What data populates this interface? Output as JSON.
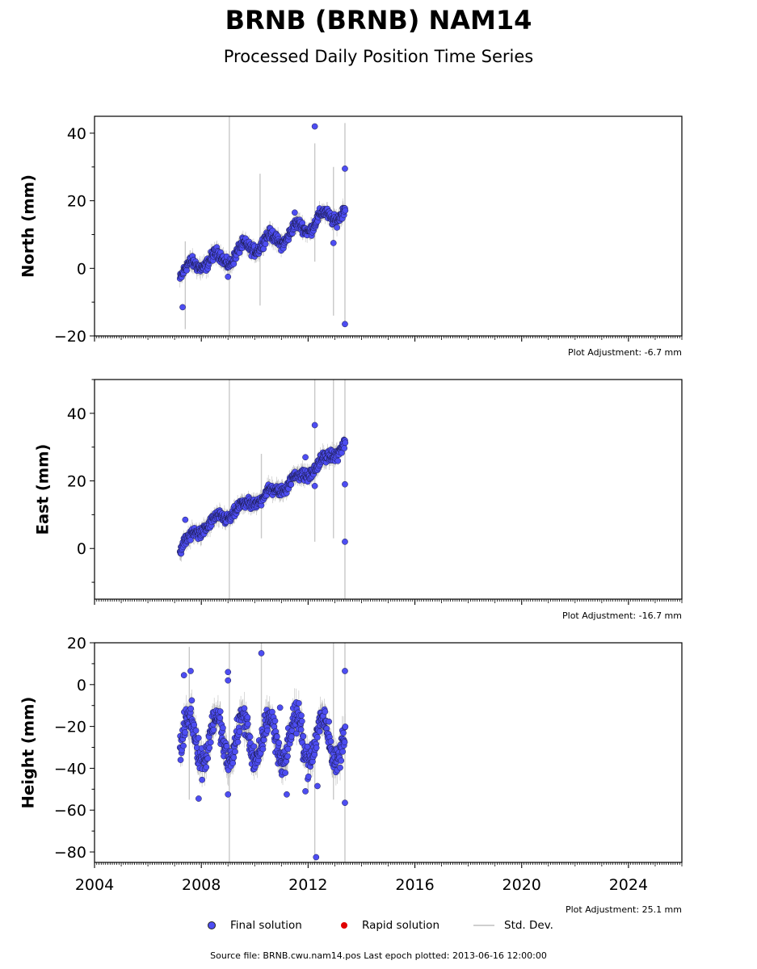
{
  "title": "BRNB (BRNB) NAM14",
  "subtitle": "Processed Daily Position Time Series",
  "legend": {
    "final_label": "Final solution",
    "rapid_label": "Rapid solution",
    "std_label": "Std. Dev."
  },
  "source_text": "Source file: BRNB.cwu.nam14.pos  Last epoch plotted: 2013-06-16 12:00:00",
  "colors": {
    "final": "#4d4df2",
    "rapid": "#e00000",
    "std": "#c8c8c8"
  },
  "chart_data": [
    {
      "type": "scatter",
      "ylabel": "North (mm)",
      "adjustment": "Plot Adjustment: -6.7 mm",
      "xlim": [
        2004,
        2026
      ],
      "ylim": [
        -20,
        45
      ],
      "yticks": [
        -20,
        0,
        20,
        40
      ],
      "xticks": [
        2004,
        2008,
        2012,
        2016,
        2020,
        2024
      ],
      "show_xtick_labels": false,
      "trend": {
        "x": [
          2007.2,
          2008.0,
          2009.0,
          2010.0,
          2011.0,
          2012.3,
          2013.4
        ],
        "y": [
          -2,
          2,
          3,
          7,
          9,
          14,
          17
        ]
      },
      "seasonal_amp": 2,
      "outliers": [
        {
          "x": 2012.25,
          "y": 42
        },
        {
          "x": 2013.38,
          "y": 29.5
        },
        {
          "x": 2013.38,
          "y": -16.5
        },
        {
          "x": 2007.3,
          "y": -11.5
        },
        {
          "x": 2009.0,
          "y": -2.5
        },
        {
          "x": 2012.95,
          "y": 7.5
        },
        {
          "x": 2011.5,
          "y": 16.5
        }
      ],
      "error_spikes": [
        {
          "x": 2009.05,
          "y1": -20,
          "y2": 45
        },
        {
          "x": 2012.25,
          "y1": 2,
          "y2": 37
        },
        {
          "x": 2013.38,
          "y1": -17,
          "y2": 43
        },
        {
          "x": 2012.95,
          "y1": -14,
          "y2": 30
        },
        {
          "x": 2010.2,
          "y1": -11,
          "y2": 28
        },
        {
          "x": 2007.4,
          "y1": -18,
          "y2": 8
        }
      ]
    },
    {
      "type": "scatter",
      "ylabel": "East (mm)",
      "adjustment": "Plot Adjustment: -16.7 mm",
      "xlim": [
        2004,
        2026
      ],
      "ylim": [
        -15,
        50
      ],
      "yticks": [
        0,
        20,
        40
      ],
      "xticks": [
        2004,
        2008,
        2012,
        2016,
        2020,
        2024
      ],
      "show_xtick_labels": false,
      "trend": {
        "x": [
          2007.2,
          2008.0,
          2009.0,
          2010.0,
          2011.0,
          2012.3,
          2013.4
        ],
        "y": [
          0,
          6,
          10,
          14,
          18,
          24,
          31
        ]
      },
      "seasonal_amp": 1.2,
      "outliers": [
        {
          "x": 2012.25,
          "y": 36.5
        },
        {
          "x": 2013.38,
          "y": 19
        },
        {
          "x": 2013.38,
          "y": 2
        },
        {
          "x": 2007.4,
          "y": 8.5
        },
        {
          "x": 2012.25,
          "y": 18.5
        },
        {
          "x": 2011.9,
          "y": 27
        }
      ],
      "error_spikes": [
        {
          "x": 2009.05,
          "y1": -15,
          "y2": 50
        },
        {
          "x": 2012.25,
          "y1": 2,
          "y2": 50
        },
        {
          "x": 2013.38,
          "y1": -15,
          "y2": 50
        },
        {
          "x": 2012.95,
          "y1": 3,
          "y2": 50
        },
        {
          "x": 2010.25,
          "y1": 3,
          "y2": 28
        }
      ]
    },
    {
      "type": "scatter",
      "ylabel": "Height (mm)",
      "adjustment": "Plot Adjustment: 25.1 mm",
      "xlim": [
        2004,
        2026
      ],
      "ylim": [
        -85,
        20
      ],
      "yticks": [
        -80,
        -60,
        -40,
        -20,
        0,
        20
      ],
      "xticks": [
        2004,
        2008,
        2012,
        2016,
        2020,
        2024
      ],
      "show_xtick_labels": true,
      "trend": {
        "x": [
          2007.2,
          2013.4
        ],
        "y": [
          -26,
          -26
        ]
      },
      "seasonal_amp": 11,
      "outliers": [
        {
          "x": 2012.3,
          "y": -82.5
        },
        {
          "x": 2010.25,
          "y": 15
        },
        {
          "x": 2013.38,
          "y": 6.5
        },
        {
          "x": 2013.38,
          "y": -56.5
        },
        {
          "x": 2007.35,
          "y": 4.5
        },
        {
          "x": 2007.6,
          "y": 6.5
        },
        {
          "x": 2009.0,
          "y": 6
        },
        {
          "x": 2009.0,
          "y": 2
        },
        {
          "x": 2007.9,
          "y": -54.5
        },
        {
          "x": 2009.0,
          "y": -52.5
        },
        {
          "x": 2011.2,
          "y": -52.5
        },
        {
          "x": 2011.9,
          "y": -51
        },
        {
          "x": 2012.35,
          "y": -48.5
        },
        {
          "x": 2010.95,
          "y": -11
        }
      ],
      "error_spikes": [
        {
          "x": 2009.05,
          "y1": -85,
          "y2": 20
        },
        {
          "x": 2012.25,
          "y1": -85,
          "y2": -30
        },
        {
          "x": 2013.38,
          "y1": -85,
          "y2": 20
        },
        {
          "x": 2012.95,
          "y1": -55,
          "y2": 20
        },
        {
          "x": 2010.25,
          "y1": -30,
          "y2": 20
        },
        {
          "x": 2007.55,
          "y1": -55,
          "y2": 18
        }
      ]
    }
  ]
}
